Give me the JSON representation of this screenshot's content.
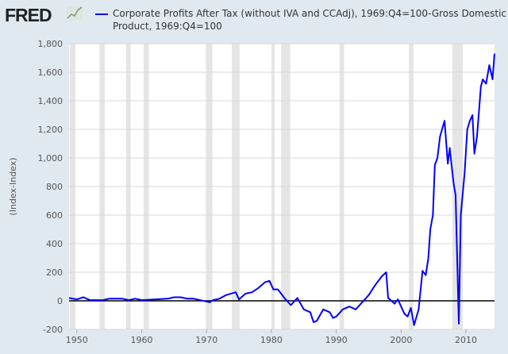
{
  "logo": "FRED",
  "chart_data": {
    "type": "line",
    "title": "",
    "xlabel": "",
    "ylabel": "(Index-Index)",
    "xlim": [
      1948.8,
      2014.4
    ],
    "ylim": [
      -200,
      1800
    ],
    "xticks": [
      1950,
      1960,
      1970,
      1980,
      1990,
      2000,
      2010
    ],
    "yticks": [
      -200,
      0,
      200,
      400,
      600,
      800,
      1000,
      1200,
      1400,
      1600,
      1800
    ],
    "grid": true,
    "legend_placement": "top",
    "color": "#0000ff",
    "recessions": [
      [
        1948.9,
        1949.8
      ],
      [
        1953.5,
        1954.3
      ],
      [
        1957.6,
        1958.3
      ],
      [
        1960.3,
        1961.1
      ],
      [
        1969.9,
        1970.9
      ],
      [
        1973.9,
        1975.1
      ],
      [
        1980.0,
        1980.5
      ],
      [
        1981.5,
        1982.9
      ],
      [
        1990.5,
        1991.2
      ],
      [
        2001.2,
        2001.9
      ],
      [
        2007.9,
        2009.5
      ]
    ],
    "series": [
      {
        "name": "Corporate Profits After Tax (without IVA and CCAdj), 1969:Q4=100-Gross Domestic Product, 1969:Q4=100",
        "x": [
          1948.8,
          1950,
          1951,
          1952,
          1954,
          1955,
          1957,
          1958,
          1959,
          1960,
          1962,
          1964,
          1965,
          1966,
          1967,
          1968,
          1969,
          1970.5,
          1971,
          1972,
          1973,
          1974.5,
          1975,
          1976,
          1977,
          1978,
          1979,
          1979.7,
          1980.3,
          1981,
          1982,
          1983,
          1984,
          1985,
          1986,
          1986.5,
          1987,
          1988,
          1989,
          1989.5,
          1990,
          1991,
          1992,
          1993,
          1994,
          1995,
          1996,
          1997,
          1997.7,
          1998,
          1999,
          1999.5,
          2000,
          2000.5,
          2001,
          2001.5,
          2002,
          2002.7,
          2003.3,
          2003.8,
          2004.2,
          2004.5,
          2004.9,
          2005.2,
          2005.6,
          2006,
          2006.7,
          2007.2,
          2007.5,
          2007.8,
          2008.1,
          2008.4,
          2008.9,
          2009.2,
          2009.8,
          2010.2,
          2010.6,
          2011,
          2011.3,
          2011.7,
          2012.3,
          2012.6,
          2013.1,
          2013.6,
          2014.1,
          2014.4
        ],
        "values": [
          20,
          10,
          25,
          5,
          5,
          15,
          15,
          5,
          15,
          5,
          10,
          15,
          25,
          25,
          15,
          15,
          5,
          -10,
          5,
          15,
          40,
          60,
          10,
          50,
          60,
          90,
          130,
          140,
          80,
          80,
          20,
          -30,
          20,
          -60,
          -80,
          -150,
          -140,
          -60,
          -80,
          -120,
          -110,
          -60,
          -40,
          -60,
          -10,
          40,
          110,
          170,
          200,
          20,
          -20,
          10,
          -40,
          -90,
          -110,
          -50,
          -170,
          -60,
          210,
          180,
          300,
          500,
          600,
          950,
          1000,
          1150,
          1260,
          960,
          1070,
          940,
          820,
          740,
          -160,
          600,
          900,
          1200,
          1260,
          1300,
          1030,
          1150,
          1500,
          1550,
          1520,
          1650,
          1550,
          1730
        ]
      }
    ]
  }
}
